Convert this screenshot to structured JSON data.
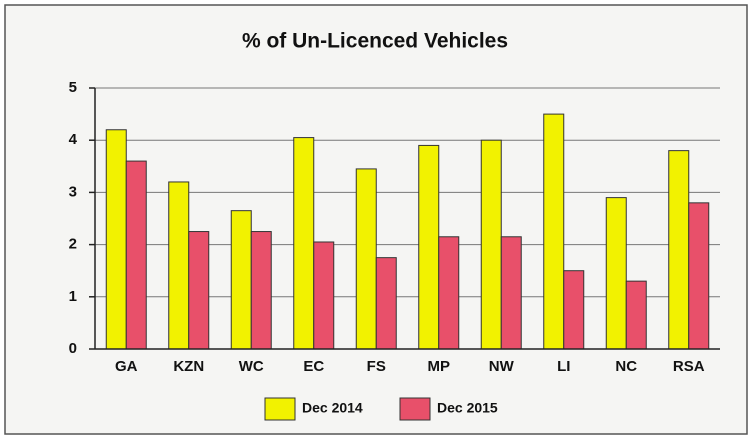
{
  "chart_data": {
    "type": "bar",
    "title": "% of Un-Licenced Vehicles",
    "categories": [
      "GA",
      "KZN",
      "WC",
      "EC",
      "FS",
      "MP",
      "NW",
      "LI",
      "NC",
      "RSA"
    ],
    "series": [
      {
        "name": "Dec 2014",
        "color": "#f2f200",
        "values": [
          4.2,
          3.2,
          2.65,
          4.05,
          3.45,
          3.9,
          4.0,
          4.5,
          2.9,
          3.8
        ]
      },
      {
        "name": "Dec 2015",
        "color": "#e8506a",
        "values": [
          3.6,
          2.25,
          2.25,
          2.05,
          1.75,
          2.15,
          2.15,
          1.5,
          1.3,
          2.8
        ]
      }
    ],
    "ylim": [
      0,
      5
    ],
    "yticks": [
      0,
      1,
      2,
      3,
      4,
      5
    ],
    "grid": true,
    "legend": "bottom"
  }
}
